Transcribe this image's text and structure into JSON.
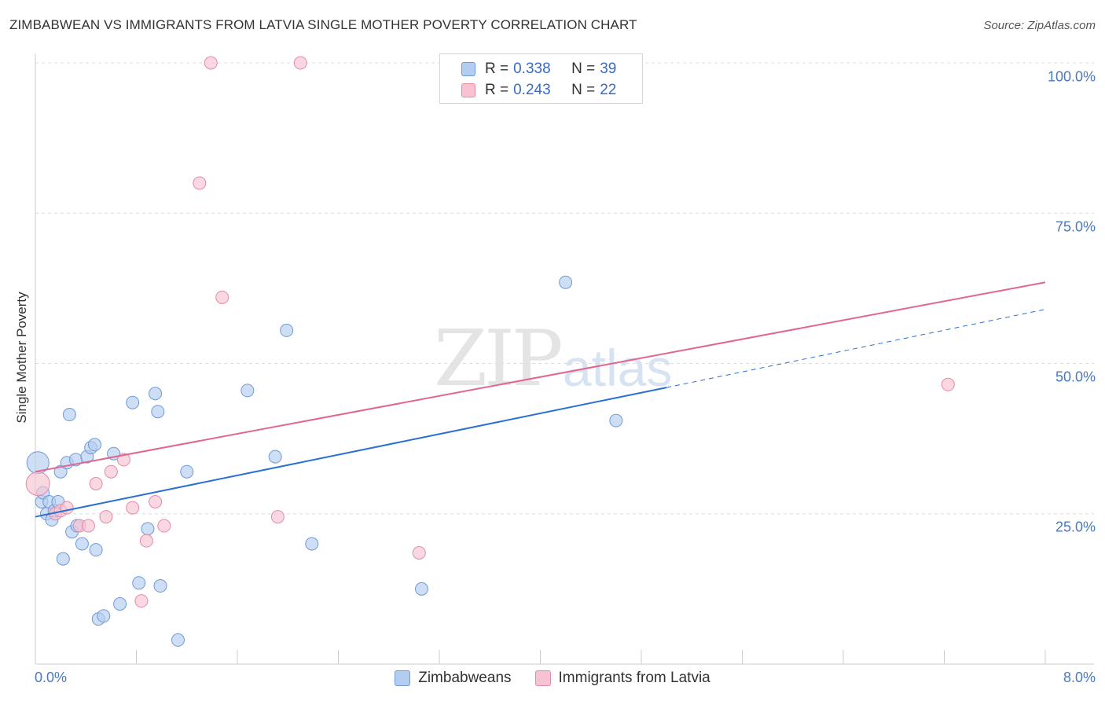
{
  "title": "ZIMBABWEAN VS IMMIGRANTS FROM LATVIA SINGLE MOTHER POVERTY CORRELATION CHART",
  "source": "Source: ZipAtlas.com",
  "watermark_a": "ZIP",
  "watermark_b": "atlas",
  "colors": {
    "blue_fill": "#b3cdf0",
    "blue_stroke": "#6f9ad6",
    "blue_line": "#2b6fd0",
    "pink_fill": "#f7c3d3",
    "pink_stroke": "#e48aa6",
    "pink_line": "#e0678f",
    "grid": "#dddddd",
    "tick_text": "#4a78c2"
  },
  "legend": {
    "series": [
      {
        "r_label": "R = ",
        "r_value": "0.338",
        "n_label": "N = ",
        "n_value": "39"
      },
      {
        "r_label": "R = ",
        "r_value": "0.243",
        "n_label": "N = ",
        "n_value": "22"
      }
    ]
  },
  "bottom_legend": [
    "Zimbabweans",
    "Immigrants from Latvia"
  ],
  "chart_data": {
    "type": "scatter",
    "title": "ZIMBABWEAN VS IMMIGRANTS FROM LATVIA SINGLE MOTHER POVERTY CORRELATION CHART",
    "xlabel": "",
    "ylabel": "Single Mother Poverty",
    "xlim": [
      0,
      8
    ],
    "ylim": [
      0,
      100
    ],
    "x_tick_labels": [
      "0.0%",
      "8.0%"
    ],
    "y_tick_labels": [
      "25.0%",
      "50.0%",
      "75.0%",
      "100.0%"
    ],
    "y_ticks": [
      25,
      50,
      75,
      100
    ],
    "series": [
      {
        "name": "Zimbabweans",
        "color": "blue",
        "points": [
          [
            0.02,
            33.5,
            26
          ],
          [
            0.05,
            27,
            14
          ],
          [
            0.06,
            28.5,
            14
          ],
          [
            0.09,
            25,
            14
          ],
          [
            0.11,
            27,
            14
          ],
          [
            0.13,
            24,
            14
          ],
          [
            0.15,
            25.5,
            14
          ],
          [
            0.18,
            27,
            14
          ],
          [
            0.2,
            32,
            14
          ],
          [
            0.22,
            17.5,
            14
          ],
          [
            0.25,
            33.5,
            14
          ],
          [
            0.27,
            41.5,
            14
          ],
          [
            0.29,
            22,
            14
          ],
          [
            0.32,
            34,
            14
          ],
          [
            0.33,
            23,
            14
          ],
          [
            0.37,
            20,
            14
          ],
          [
            0.41,
            34.5,
            14
          ],
          [
            0.44,
            36,
            14
          ],
          [
            0.47,
            36.5,
            14
          ],
          [
            0.48,
            19,
            14
          ],
          [
            0.5,
            7.5,
            14
          ],
          [
            0.54,
            8,
            14
          ],
          [
            0.62,
            35,
            14
          ],
          [
            0.67,
            10,
            14
          ],
          [
            0.77,
            43.5,
            14
          ],
          [
            0.82,
            13.5,
            14
          ],
          [
            0.89,
            22.5,
            14
          ],
          [
            0.95,
            45,
            14
          ],
          [
            0.97,
            42,
            14
          ],
          [
            0.99,
            13,
            14
          ],
          [
            1.13,
            4,
            14
          ],
          [
            1.2,
            32,
            14
          ],
          [
            1.68,
            45.5,
            14
          ],
          [
            1.9,
            34.5,
            14
          ],
          [
            1.99,
            55.5,
            14
          ],
          [
            2.19,
            20,
            14
          ],
          [
            3.06,
            12.5,
            14
          ],
          [
            4.2,
            63.5,
            14
          ],
          [
            4.6,
            40.5,
            14
          ]
        ]
      },
      {
        "name": "Immigrants from Latvia",
        "color": "pink",
        "points": [
          [
            0.02,
            30,
            28
          ],
          [
            0.16,
            25,
            14
          ],
          [
            0.2,
            25.5,
            14
          ],
          [
            0.25,
            26,
            14
          ],
          [
            0.35,
            23,
            14
          ],
          [
            0.42,
            23,
            14
          ],
          [
            0.48,
            30,
            14
          ],
          [
            0.56,
            24.5,
            14
          ],
          [
            0.6,
            32,
            14
          ],
          [
            0.7,
            34,
            14
          ],
          [
            0.77,
            26,
            14
          ],
          [
            0.84,
            10.5,
            14
          ],
          [
            0.88,
            20.5,
            14
          ],
          [
            0.95,
            27,
            14
          ],
          [
            1.02,
            23,
            14
          ],
          [
            1.3,
            80,
            14
          ],
          [
            1.39,
            100,
            14
          ],
          [
            1.48,
            61,
            14
          ],
          [
            1.92,
            24.5,
            14
          ],
          [
            2.1,
            100,
            14
          ],
          [
            3.04,
            18.5,
            14
          ],
          [
            7.23,
            46.5,
            14
          ]
        ]
      }
    ],
    "trend_lines": [
      {
        "series": "Zimbabweans",
        "x0": 0.0,
        "y0": 24.5,
        "x1": 5.0,
        "y1": 46.0,
        "dashed_to_x": 8.0,
        "dashed_to_y": 59.0
      },
      {
        "series": "Immigrants from Latvia",
        "x0": 0.0,
        "y0": 32.0,
        "x1": 8.0,
        "y1": 63.5
      }
    ]
  }
}
